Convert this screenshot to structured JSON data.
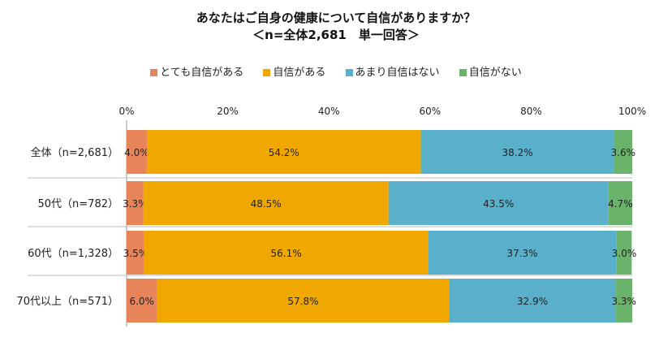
{
  "chart_data": {
    "type": "bar",
    "orientation": "horizontal",
    "stacked": true,
    "title": "あなたはご自身の健康について自信がありますか？",
    "subtitle": "＜n=全体2,681　単一回答＞",
    "categories": [
      "全体（n=2,681）",
      "50代（n=782）",
      "60代（n=1,328）",
      "70代以上（n=571）"
    ],
    "series": [
      {
        "name": "とても自信がある",
        "color": "#E8845A",
        "values": [
          4.0,
          3.3,
          3.5,
          6.0
        ],
        "labels": [
          "4.0%",
          "3.3%",
          "3.5%",
          "6.0%"
        ]
      },
      {
        "name": "自信がある",
        "color": "#F0A800",
        "values": [
          54.2,
          48.5,
          56.1,
          57.8
        ],
        "labels": [
          "54.2%",
          "48.5%",
          "56.1%",
          "57.8%"
        ]
      },
      {
        "name": "あまり自信はない",
        "color": "#5AB0CB",
        "values": [
          38.2,
          43.5,
          37.3,
          32.9
        ],
        "labels": [
          "38.2%",
          "43.5%",
          "37.3%",
          "32.9%"
        ]
      },
      {
        "name": "自信がない",
        "color": "#6BB26A",
        "values": [
          3.6,
          4.7,
          3.0,
          3.3
        ],
        "labels": [
          "3.6%",
          "4.7%",
          "3.0%",
          "3.3%"
        ]
      }
    ],
    "xlim": [
      0,
      100
    ],
    "ticks": [
      "0%",
      "20%",
      "40%",
      "60%",
      "80%",
      "100%"
    ],
    "legend_position": "top"
  }
}
